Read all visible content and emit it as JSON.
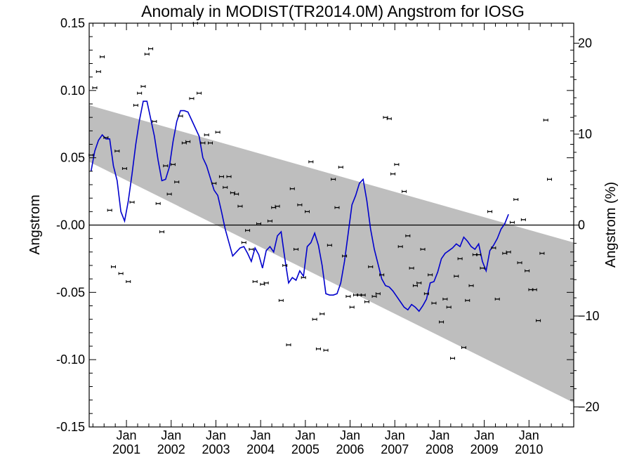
{
  "chart_data": {
    "type": "scatter",
    "title": "Anomaly in MODIST(TR2014.0M) Angstrom for IOSG",
    "ylabel": "Angstrom",
    "ylabel_right": "Angstrom (%)",
    "xlim": [
      "2000-03",
      "2010-12"
    ],
    "ylim": [
      -0.15,
      0.15
    ],
    "ylim_right": [
      -22.2,
      22.2
    ],
    "x_ticks": [
      {
        "line1": "Jan",
        "line2": "2001",
        "year": 2001
      },
      {
        "line1": "Jan",
        "line2": "2002",
        "year": 2002
      },
      {
        "line1": "Jan",
        "line2": "2003",
        "year": 2003
      },
      {
        "line1": "Jan",
        "line2": "2004",
        "year": 2004
      },
      {
        "line1": "Jan",
        "line2": "2005",
        "year": 2005
      },
      {
        "line1": "Jan",
        "line2": "2006",
        "year": 2006
      },
      {
        "line1": "Jan",
        "line2": "2007",
        "year": 2007
      },
      {
        "line1": "Jan",
        "line2": "2008",
        "year": 2008
      },
      {
        "line1": "Jan",
        "line2": "2009",
        "year": 2009
      },
      {
        "line1": "Jan",
        "line2": "2010",
        "year": 2010
      }
    ],
    "y_ticks_left": [
      {
        "label": "0.15",
        "value": 0.15
      },
      {
        "label": "0.10",
        "value": 0.1
      },
      {
        "label": "0.05",
        "value": 0.05
      },
      {
        "label": "-0.00",
        "value": 0.0
      },
      {
        "label": "-0.05",
        "value": -0.05
      },
      {
        "label": "-0.10",
        "value": -0.1
      },
      {
        "label": "-0.15",
        "value": -0.15
      }
    ],
    "y_ticks_right": [
      {
        "label": "20",
        "value": 20
      },
      {
        "label": "10",
        "value": 10
      },
      {
        "label": "0",
        "value": 0
      },
      {
        "label": "−10",
        "value": -10
      },
      {
        "label": "−20",
        "value": -20
      }
    ],
    "trend_band": {
      "start": "2000-03",
      "end": "2010-12",
      "upper_start": 0.089,
      "upper_end": -0.013,
      "lower_start": 0.047,
      "lower_end": -0.132
    },
    "zero_line": 0,
    "colors": {
      "smooth": "#0000cc",
      "band": "#bebebe",
      "points": "#000000"
    },
    "points": [
      {
        "x": "2000-03",
        "y": 0.052
      },
      {
        "x": "2000-04",
        "y": 0.102
      },
      {
        "x": "2000-05",
        "y": 0.114
      },
      {
        "x": "2000-06",
        "y": 0.125
      },
      {
        "x": "2000-07",
        "y": 0.065
      },
      {
        "x": "2000-08",
        "y": 0.011
      },
      {
        "x": "2000-09",
        "y": -0.031
      },
      {
        "x": "2000-10",
        "y": 0.055
      },
      {
        "x": "2000-11",
        "y": -0.036
      },
      {
        "x": "2000-12",
        "y": 0.042
      },
      {
        "x": "2001-01",
        "y": -0.042
      },
      {
        "x": "2001-02",
        "y": 0.017
      },
      {
        "x": "2001-03",
        "y": 0.089
      },
      {
        "x": "2001-04",
        "y": 0.098
      },
      {
        "x": "2001-05",
        "y": 0.103
      },
      {
        "x": "2001-06",
        "y": 0.127
      },
      {
        "x": "2001-07",
        "y": 0.131
      },
      {
        "x": "2001-08",
        "y": 0.077
      },
      {
        "x": "2001-09",
        "y": 0.016
      },
      {
        "x": "2001-10",
        "y": -0.005
      },
      {
        "x": "2001-11",
        "y": 0.044
      },
      {
        "x": "2001-12",
        "y": 0.023
      },
      {
        "x": "2002-01",
        "y": 0.045
      },
      {
        "x": "2002-02",
        "y": 0.032
      },
      {
        "x": "2002-03",
        "y": 0.081
      },
      {
        "x": "2002-04",
        "y": 0.061
      },
      {
        "x": "2002-05",
        "y": 0.062
      },
      {
        "x": "2002-06",
        "y": 0.094
      },
      {
        "x": "2002-07",
        "y": 0.15
      },
      {
        "x": "2002-08",
        "y": 0.098
      },
      {
        "x": "2002-09",
        "y": 0.061
      },
      {
        "x": "2002-10",
        "y": 0.067
      },
      {
        "x": "2002-11",
        "y": 0.061
      },
      {
        "x": "2002-12",
        "y": 0.031
      },
      {
        "x": "2003-01",
        "y": 0.069
      },
      {
        "x": "2003-02",
        "y": 0.036
      },
      {
        "x": "2003-03",
        "y": 0.028
      },
      {
        "x": "2003-04",
        "y": 0.036
      },
      {
        "x": "2003-05",
        "y": 0.024
      },
      {
        "x": "2003-06",
        "y": 0.023
      },
      {
        "x": "2003-07",
        "y": 0.014
      },
      {
        "x": "2003-08",
        "y": -0.013
      },
      {
        "x": "2003-09",
        "y": -0.004
      },
      {
        "x": "2003-10",
        "y": -0.018
      },
      {
        "x": "2003-11",
        "y": -0.042
      },
      {
        "x": "2003-12",
        "y": 0.001
      },
      {
        "x": "2004-01",
        "y": -0.044
      },
      {
        "x": "2004-02",
        "y": -0.043
      },
      {
        "x": "2004-03",
        "y": 0.003
      },
      {
        "x": "2004-04",
        "y": 0.013
      },
      {
        "x": "2004-05",
        "y": 0.014
      },
      {
        "x": "2004-06",
        "y": -0.056
      },
      {
        "x": "2004-07",
        "y": -0.03
      },
      {
        "x": "2004-08",
        "y": -0.089
      },
      {
        "x": "2004-09",
        "y": 0.027
      },
      {
        "x": "2004-10",
        "y": -0.018
      },
      {
        "x": "2004-11",
        "y": 0.015
      },
      {
        "x": "2004-12",
        "y": -0.039
      },
      {
        "x": "2005-01",
        "y": 0.01
      },
      {
        "x": "2005-02",
        "y": 0.047
      },
      {
        "x": "2005-03",
        "y": -0.07
      },
      {
        "x": "2005-04",
        "y": -0.092
      },
      {
        "x": "2005-05",
        "y": -0.066
      },
      {
        "x": "2005-06",
        "y": -0.093
      },
      {
        "x": "2005-07",
        "y": -0.015
      },
      {
        "x": "2005-08",
        "y": 0.034
      },
      {
        "x": "2005-09",
        "y": 0.013
      },
      {
        "x": "2005-10",
        "y": 0.043
      },
      {
        "x": "2005-11",
        "y": -0.023
      },
      {
        "x": "2005-12",
        "y": -0.053
      },
      {
        "x": "2006-01",
        "y": -0.061
      },
      {
        "x": "2006-02",
        "y": -0.052
      },
      {
        "x": "2006-03",
        "y": -0.052
      },
      {
        "x": "2006-04",
        "y": -0.052
      },
      {
        "x": "2006-05",
        "y": -0.057
      },
      {
        "x": "2006-06",
        "y": -0.031
      },
      {
        "x": "2006-07",
        "y": -0.053
      },
      {
        "x": "2006-08",
        "y": -0.051
      },
      {
        "x": "2006-09",
        "y": -0.037
      },
      {
        "x": "2006-10",
        "y": 0.08
      },
      {
        "x": "2006-11",
        "y": 0.079
      },
      {
        "x": "2006-12",
        "y": 0.038
      },
      {
        "x": "2007-01",
        "y": 0.045
      },
      {
        "x": "2007-02",
        "y": -0.016
      },
      {
        "x": "2007-03",
        "y": 0.025
      },
      {
        "x": "2007-04",
        "y": -0.008
      },
      {
        "x": "2007-05",
        "y": -0.032
      },
      {
        "x": "2007-06",
        "y": -0.045
      },
      {
        "x": "2007-07",
        "y": -0.043
      },
      {
        "x": "2007-08",
        "y": -0.018
      },
      {
        "x": "2007-09",
        "y": -0.051
      },
      {
        "x": "2007-10",
        "y": -0.037
      },
      {
        "x": "2007-11",
        "y": -0.058
      },
      {
        "x": "2008-01",
        "y": -0.072
      },
      {
        "x": "2008-02",
        "y": -0.055
      },
      {
        "x": "2008-03",
        "y": -0.061
      },
      {
        "x": "2008-04",
        "y": -0.099
      },
      {
        "x": "2008-05",
        "y": -0.038
      },
      {
        "x": "2008-06",
        "y": -0.025
      },
      {
        "x": "2008-07",
        "y": -0.091
      },
      {
        "x": "2008-08",
        "y": -0.056
      },
      {
        "x": "2008-09",
        "y": -0.045
      },
      {
        "x": "2008-10",
        "y": -0.022
      },
      {
        "x": "2008-11",
        "y": -0.022
      },
      {
        "x": "2008-12",
        "y": -0.032
      },
      {
        "x": "2009-02",
        "y": 0.01
      },
      {
        "x": "2009-03",
        "y": -0.017
      },
      {
        "x": "2009-04",
        "y": -0.055
      },
      {
        "x": "2009-06",
        "y": -0.021
      },
      {
        "x": "2009-07",
        "y": -0.02
      },
      {
        "x": "2009-08",
        "y": 0.002
      },
      {
        "x": "2009-09",
        "y": 0.019
      },
      {
        "x": "2009-10",
        "y": -0.028
      },
      {
        "x": "2009-11",
        "y": 0.004
      },
      {
        "x": "2009-12",
        "y": -0.034
      },
      {
        "x": "2010-01",
        "y": -0.048
      },
      {
        "x": "2010-02",
        "y": -0.048
      },
      {
        "x": "2010-03",
        "y": -0.071
      },
      {
        "x": "2010-04",
        "y": -0.021
      },
      {
        "x": "2010-05",
        "y": 0.078
      },
      {
        "x": "2010-06",
        "y": 0.034
      }
    ],
    "smooth_line": [
      {
        "x": "2000-03",
        "y": 0.04
      },
      {
        "x": "2000-04",
        "y": 0.055
      },
      {
        "x": "2000-05",
        "y": 0.063
      },
      {
        "x": "2000-06",
        "y": 0.067
      },
      {
        "x": "2000-07",
        "y": 0.064
      },
      {
        "x": "2000-08",
        "y": 0.064
      },
      {
        "x": "2000-09",
        "y": 0.044
      },
      {
        "x": "2000-10",
        "y": 0.033
      },
      {
        "x": "2000-11",
        "y": 0.01
      },
      {
        "x": "2000-12",
        "y": 0.003
      },
      {
        "x": "2001-01",
        "y": 0.018
      },
      {
        "x": "2001-02",
        "y": 0.038
      },
      {
        "x": "2001-03",
        "y": 0.06
      },
      {
        "x": "2001-04",
        "y": 0.078
      },
      {
        "x": "2001-05",
        "y": 0.092
      },
      {
        "x": "2001-06",
        "y": 0.092
      },
      {
        "x": "2001-07",
        "y": 0.079
      },
      {
        "x": "2001-08",
        "y": 0.066
      },
      {
        "x": "2001-09",
        "y": 0.048
      },
      {
        "x": "2001-10",
        "y": 0.033
      },
      {
        "x": "2001-11",
        "y": 0.034
      },
      {
        "x": "2001-12",
        "y": 0.043
      },
      {
        "x": "2002-01",
        "y": 0.062
      },
      {
        "x": "2002-02",
        "y": 0.077
      },
      {
        "x": "2002-03",
        "y": 0.085
      },
      {
        "x": "2002-04",
        "y": 0.085
      },
      {
        "x": "2002-05",
        "y": 0.084
      },
      {
        "x": "2002-06",
        "y": 0.078
      },
      {
        "x": "2002-07",
        "y": 0.072
      },
      {
        "x": "2002-08",
        "y": 0.066
      },
      {
        "x": "2002-09",
        "y": 0.05
      },
      {
        "x": "2002-10",
        "y": 0.044
      },
      {
        "x": "2002-11",
        "y": 0.035
      },
      {
        "x": "2002-12",
        "y": 0.026
      },
      {
        "x": "2003-01",
        "y": 0.022
      },
      {
        "x": "2003-02",
        "y": 0.01
      },
      {
        "x": "2003-03",
        "y": -0.003
      },
      {
        "x": "2003-04",
        "y": -0.013
      },
      {
        "x": "2003-05",
        "y": -0.023
      },
      {
        "x": "2003-06",
        "y": -0.02
      },
      {
        "x": "2003-07",
        "y": -0.017
      },
      {
        "x": "2003-08",
        "y": -0.016
      },
      {
        "x": "2003-09",
        "y": -0.021
      },
      {
        "x": "2003-10",
        "y": -0.027
      },
      {
        "x": "2003-11",
        "y": -0.017
      },
      {
        "x": "2003-12",
        "y": -0.022
      },
      {
        "x": "2004-01",
        "y": -0.032
      },
      {
        "x": "2004-02",
        "y": -0.019
      },
      {
        "x": "2004-03",
        "y": -0.016
      },
      {
        "x": "2004-04",
        "y": -0.02
      },
      {
        "x": "2004-05",
        "y": -0.008
      },
      {
        "x": "2004-06",
        "y": -0.005
      },
      {
        "x": "2004-07",
        "y": -0.025
      },
      {
        "x": "2004-08",
        "y": -0.043
      },
      {
        "x": "2004-09",
        "y": -0.039
      },
      {
        "x": "2004-10",
        "y": -0.041
      },
      {
        "x": "2004-11",
        "y": -0.034
      },
      {
        "x": "2004-12",
        "y": -0.038
      },
      {
        "x": "2005-01",
        "y": -0.016
      },
      {
        "x": "2005-02",
        "y": -0.013
      },
      {
        "x": "2005-03",
        "y": -0.006
      },
      {
        "x": "2005-04",
        "y": -0.015
      },
      {
        "x": "2005-05",
        "y": -0.03
      },
      {
        "x": "2005-06",
        "y": -0.051
      },
      {
        "x": "2005-07",
        "y": -0.052
      },
      {
        "x": "2005-08",
        "y": -0.052
      },
      {
        "x": "2005-09",
        "y": -0.051
      },
      {
        "x": "2005-10",
        "y": -0.043
      },
      {
        "x": "2005-11",
        "y": -0.027
      },
      {
        "x": "2005-12",
        "y": -0.006
      },
      {
        "x": "2006-01",
        "y": 0.015
      },
      {
        "x": "2006-02",
        "y": 0.022
      },
      {
        "x": "2006-03",
        "y": 0.031
      },
      {
        "x": "2006-04",
        "y": 0.034
      },
      {
        "x": "2006-05",
        "y": 0.018
      },
      {
        "x": "2006-06",
        "y": -0.003
      },
      {
        "x": "2006-07",
        "y": -0.018
      },
      {
        "x": "2006-08",
        "y": -0.029
      },
      {
        "x": "2006-09",
        "y": -0.04
      },
      {
        "x": "2006-10",
        "y": -0.045
      },
      {
        "x": "2006-11",
        "y": -0.046
      },
      {
        "x": "2006-12",
        "y": -0.049
      },
      {
        "x": "2007-01",
        "y": -0.053
      },
      {
        "x": "2007-02",
        "y": -0.057
      },
      {
        "x": "2007-03",
        "y": -0.061
      },
      {
        "x": "2007-04",
        "y": -0.063
      },
      {
        "x": "2007-05",
        "y": -0.059
      },
      {
        "x": "2007-06",
        "y": -0.061
      },
      {
        "x": "2007-07",
        "y": -0.064
      },
      {
        "x": "2007-08",
        "y": -0.06
      },
      {
        "x": "2007-09",
        "y": -0.055
      },
      {
        "x": "2007-10",
        "y": -0.043
      },
      {
        "x": "2007-11",
        "y": -0.042
      },
      {
        "x": "2007-12",
        "y": -0.035
      },
      {
        "x": "2008-01",
        "y": -0.025
      },
      {
        "x": "2008-02",
        "y": -0.021
      },
      {
        "x": "2008-03",
        "y": -0.019
      },
      {
        "x": "2008-04",
        "y": -0.017
      },
      {
        "x": "2008-05",
        "y": -0.014
      },
      {
        "x": "2008-06",
        "y": -0.016
      },
      {
        "x": "2008-07",
        "y": -0.009
      },
      {
        "x": "2008-08",
        "y": -0.012
      },
      {
        "x": "2008-09",
        "y": -0.016
      },
      {
        "x": "2008-10",
        "y": -0.018
      },
      {
        "x": "2008-11",
        "y": -0.014
      },
      {
        "x": "2008-12",
        "y": -0.027
      },
      {
        "x": "2009-01",
        "y": -0.034
      },
      {
        "x": "2009-02",
        "y": -0.019
      },
      {
        "x": "2009-03",
        "y": -0.015
      },
      {
        "x": "2009-04",
        "y": -0.01
      },
      {
        "x": "2009-05",
        "y": -0.003
      },
      {
        "x": "2009-06",
        "y": 0.001
      },
      {
        "x": "2009-07",
        "y": 0.008
      }
    ]
  }
}
